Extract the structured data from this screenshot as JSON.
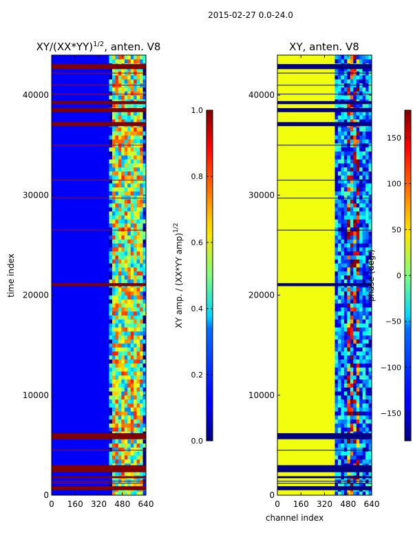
{
  "suptitle": "2015-02-27 0.0-24.0",
  "chart_data": [
    {
      "type": "heatmap",
      "title_prefix": "XY/(XX*YY)",
      "title_exp": "1/2",
      "title_suffix": ", anten. V8",
      "xlabel": "",
      "ylabel": "time index",
      "xlim": [
        0,
        640
      ],
      "ylim": [
        0,
        44000
      ],
      "xticks": [
        0,
        160,
        320,
        480,
        640
      ],
      "yticks": [
        0,
        10000,
        20000,
        30000,
        40000
      ],
      "colormap": "jet",
      "colorbar": {
        "label_prefix": "XY amp. / (XX*YY amp)",
        "label_exp": "1/2",
        "range": [
          0.0,
          1.0
        ],
        "ticks": [
          "0.0",
          "0.2",
          "0.4",
          "0.6",
          "0.8",
          "1.0"
        ],
        "tick_values": [
          0.0,
          0.2,
          0.4,
          0.6,
          0.8,
          1.0
        ]
      },
      "background_level": 0.12,
      "flagged_bands_y": [
        [
          500,
          900
        ],
        [
          1700,
          1900
        ],
        [
          2300,
          3000
        ],
        [
          5600,
          6200
        ],
        [
          20900,
          21200
        ],
        [
          36900,
          37300
        ],
        [
          38300,
          38700
        ],
        [
          39100,
          39400
        ],
        [
          42600,
          43100
        ]
      ],
      "flagged_lines_y": [
        1200,
        1400,
        4500,
        26500,
        29700,
        31500,
        35000,
        40100,
        41000,
        42200
      ],
      "active_channel_range": [
        390,
        640
      ],
      "active_level": 0.55
    },
    {
      "type": "heatmap",
      "title": "XY, anten. V8",
      "xlabel": "channel index",
      "ylabel": "",
      "xlim": [
        0,
        640
      ],
      "ylim": [
        0,
        44000
      ],
      "xticks": [
        0,
        160,
        320,
        480,
        640
      ],
      "yticks": [
        0,
        10000,
        20000,
        30000,
        40000
      ],
      "colormap": "jet",
      "colorbar": {
        "label": "phase (deg.)",
        "range": [
          -180,
          180
        ],
        "ticks": [
          "−150",
          "−100",
          "−50",
          "0",
          "50",
          "100",
          "150"
        ],
        "tick_values": [
          -150,
          -100,
          -50,
          0,
          50,
          100,
          150
        ]
      },
      "background_level": 40,
      "flagged_bands_y": [
        [
          500,
          900
        ],
        [
          1700,
          1900
        ],
        [
          2300,
          3000
        ],
        [
          5600,
          6200
        ],
        [
          20900,
          21200
        ],
        [
          36900,
          37300
        ],
        [
          38300,
          38700
        ],
        [
          39100,
          39400
        ],
        [
          42600,
          43100
        ]
      ],
      "flagged_lines_y": [
        1200,
        1400,
        4500,
        26500,
        29700,
        31500,
        35000,
        40100,
        41000,
        42200
      ],
      "active_channel_range": [
        390,
        640
      ],
      "active_level": -90
    }
  ]
}
